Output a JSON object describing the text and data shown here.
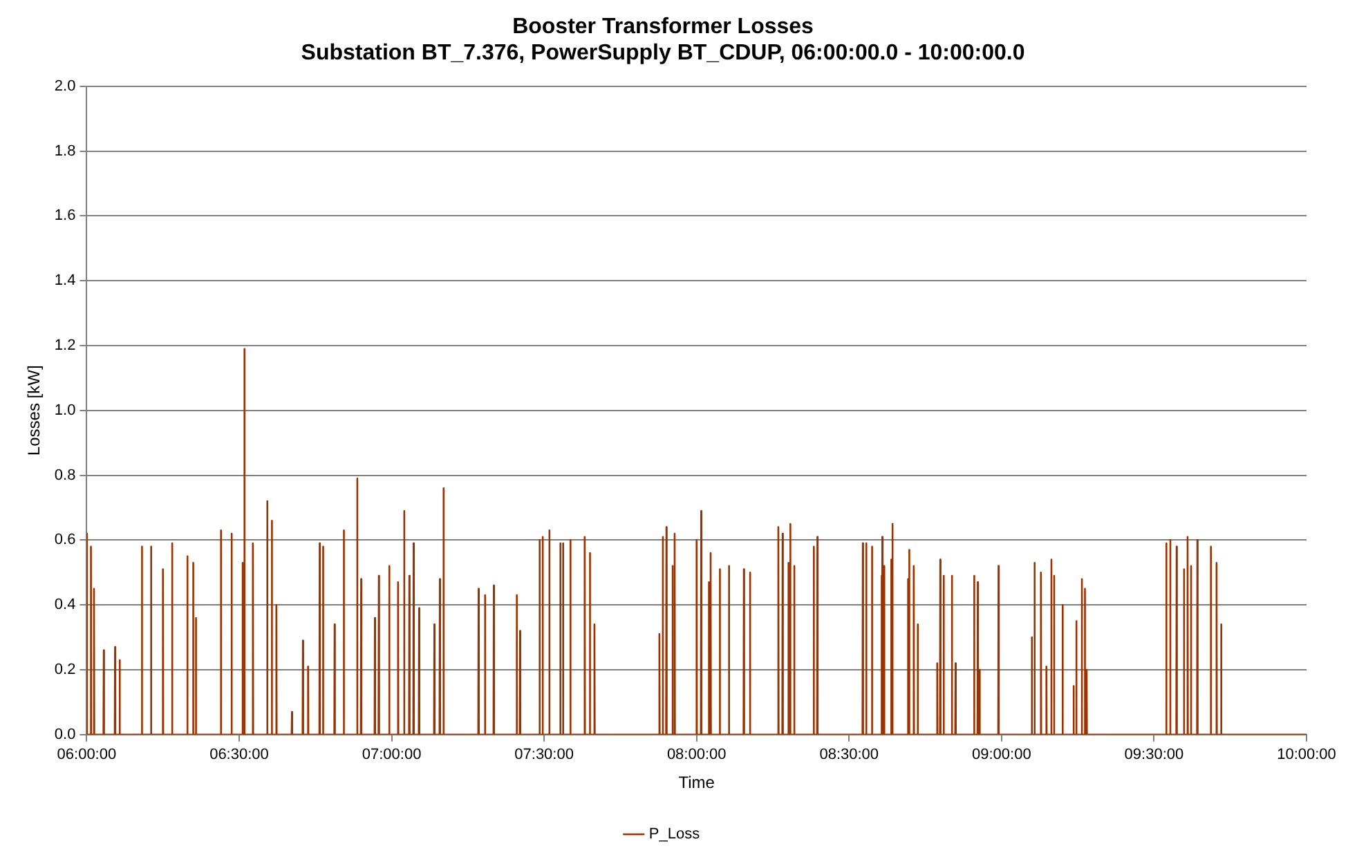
{
  "chart_data": {
    "type": "line",
    "title": "Booster Transformer Losses",
    "subtitle": "Substation BT_7.376, PowerSupply BT_CDUP, 06:00:00.0 - 10:00:00.0",
    "xlabel": "Time",
    "ylabel": "Losses [kW]",
    "xlim": [
      6,
      10
    ],
    "xticks": [
      {
        "value": 6,
        "label": "06:00:00"
      },
      {
        "value": 6.5,
        "label": "06:30:00"
      },
      {
        "value": 7,
        "label": "07:00:00"
      },
      {
        "value": 7.5,
        "label": "07:30:00"
      },
      {
        "value": 8,
        "label": "08:00:00"
      },
      {
        "value": 8.5,
        "label": "08:30:00"
      },
      {
        "value": 9,
        "label": "09:00:00"
      },
      {
        "value": 9.5,
        "label": "09:30:00"
      },
      {
        "value": 10,
        "label": "10:00:00"
      }
    ],
    "ylim": [
      0,
      2
    ],
    "yticks": [
      {
        "value": 0,
        "label": "0.0"
      },
      0.2,
      0.4,
      0.6,
      0.8,
      {
        "value": 1,
        "label": "1.0"
      },
      1.2,
      1.4,
      1.6,
      1.8,
      {
        "value": 2,
        "label": "2.0"
      }
    ],
    "grid": "y",
    "legend": "bottom",
    "marker": "none",
    "line_style": "solid",
    "series": [
      {
        "name": "P_Loss",
        "color": "#993300",
        "x": [
          6.0,
          6.001,
          6.013,
          6.014,
          6.015,
          6.023,
          6.024,
          6.025,
          6.055,
          6.056,
          6.057,
          6.092,
          6.093,
          6.094,
          6.107,
          6.108,
          6.109,
          6.18,
          6.181,
          6.182,
          6.21,
          6.211,
          6.212,
          6.249,
          6.25,
          6.251,
          6.279,
          6.28,
          6.281,
          6.329,
          6.33,
          6.331,
          6.348,
          6.349,
          6.35,
          6.357,
          6.358,
          6.359,
          6.439,
          6.44,
          6.441,
          6.474,
          6.475,
          6.476,
          6.51,
          6.511,
          6.512,
          6.516,
          6.517,
          6.518,
          6.544,
          6.545,
          6.546,
          6.591,
          6.592,
          6.593,
          6.606,
          6.607,
          6.608,
          6.621,
          6.622,
          6.623,
          6.672,
          6.673,
          6.674,
          6.708,
          6.709,
          6.71,
          6.725,
          6.726,
          6.727,
          6.763,
          6.764,
          6.765,
          6.774,
          6.775,
          6.776,
          6.812,
          6.813,
          6.814,
          6.842,
          6.843,
          6.844,
          6.886,
          6.887,
          6.888,
          6.899,
          6.9,
          6.901,
          6.944,
          6.945,
          6.946,
          6.957,
          6.958,
          6.959,
          6.991,
          6.992,
          6.993,
          7.02,
          7.021,
          7.022,
          7.04,
          7.041,
          7.042,
          7.057,
          7.058,
          7.059,
          7.071,
          7.072,
          7.073,
          7.089,
          7.09,
          7.091,
          7.139,
          7.14,
          7.141,
          7.157,
          7.158,
          7.159,
          7.169,
          7.17,
          7.171,
          7.284,
          7.285,
          7.286,
          7.305,
          7.306,
          7.307,
          7.334,
          7.335,
          7.336,
          7.409,
          7.41,
          7.411,
          7.42,
          7.421,
          7.422,
          7.484,
          7.485,
          7.486,
          7.494,
          7.495,
          7.496,
          7.516,
          7.517,
          7.518,
          7.552,
          7.553,
          7.554,
          7.561,
          7.562,
          7.563,
          7.585,
          7.586,
          7.587,
          7.632,
          7.633,
          7.634,
          7.649,
          7.65,
          7.651,
          7.664,
          7.665,
          7.666,
          7.877,
          7.878,
          7.879,
          7.888,
          7.889,
          7.89,
          7.9,
          7.901,
          7.902,
          7.92,
          7.921,
          7.922,
          7.927,
          7.928,
          7.929,
          7.999,
          8.0,
          8.001,
          8.014,
          8.015,
          8.016,
          8.039,
          8.04,
          8.041,
          8.045,
          8.046,
          8.047,
          8.075,
          8.076,
          8.077,
          8.105,
          8.106,
          8.107,
          8.154,
          8.155,
          8.156,
          8.174,
          8.175,
          8.176,
          8.267,
          8.268,
          8.269,
          8.281,
          8.282,
          8.283,
          8.3,
          8.301,
          8.302,
          8.306,
          8.307,
          8.308,
          8.319,
          8.32,
          8.321,
          8.383,
          8.384,
          8.385,
          8.395,
          8.396,
          8.397,
          8.544,
          8.545,
          8.546,
          8.555,
          8.556,
          8.557,
          8.574,
          8.575,
          8.576,
          8.605,
          8.606,
          8.607,
          8.608,
          8.609,
          8.61,
          8.614,
          8.615,
          8.616,
          8.637,
          8.638,
          8.639,
          8.641,
          8.642,
          8.643,
          8.692,
          8.693,
          8.694,
          8.696,
          8.697,
          8.698,
          8.711,
          8.712,
          8.713,
          8.724,
          8.725,
          8.726,
          8.788,
          8.789,
          8.79,
          8.798,
          8.799,
          8.8,
          8.809,
          8.81,
          8.811,
          8.836,
          8.837,
          8.838,
          8.848,
          8.849,
          8.85,
          8.909,
          8.91,
          8.911,
          8.921,
          8.922,
          8.923,
          8.927,
          8.928,
          8.929,
          8.989,
          8.99,
          8.991,
          9.098,
          9.099,
          9.1,
          9.107,
          9.108,
          9.109,
          9.128,
          9.129,
          9.13,
          9.146,
          9.147,
          9.148,
          9.162,
          9.163,
          9.164,
          9.171,
          9.172,
          9.173,
          9.199,
          9.2,
          9.201,
          9.235,
          9.236,
          9.237,
          9.244,
          9.245,
          9.246,
          9.262,
          9.263,
          9.264,
          9.272,
          9.273,
          9.274,
          9.278,
          9.279,
          9.28,
          9.539,
          9.54,
          9.541,
          9.552,
          9.553,
          9.554,
          9.573,
          9.574,
          9.575,
          9.597,
          9.598,
          9.599,
          9.609,
          9.61,
          9.611,
          9.62,
          9.621,
          9.622,
          9.641,
          9.642,
          9.643,
          9.685,
          9.686,
          9.687,
          9.704,
          9.705,
          9.706,
          9.719,
          9.72,
          9.721,
          10.0
        ],
        "values": [
          0.62,
          0,
          0,
          0.58,
          0,
          0,
          0.45,
          0,
          0,
          0.26,
          0,
          0,
          0.27,
          0,
          0,
          0.23,
          0,
          0,
          0.58,
          0,
          0,
          0.58,
          0,
          0,
          0.51,
          0,
          0,
          0.59,
          0,
          0,
          0.55,
          0,
          0,
          0.53,
          0,
          0,
          0.36,
          0,
          0,
          0.63,
          0,
          0,
          0.62,
          0,
          0,
          0.53,
          0,
          0,
          1.19,
          0,
          0,
          0.59,
          0,
          0,
          0.72,
          0,
          0,
          0.66,
          0,
          0,
          0.4,
          0,
          0,
          0.07,
          0,
          0,
          0.29,
          0,
          0,
          0.21,
          0,
          0,
          0.59,
          0,
          0,
          0.58,
          0,
          0,
          0.34,
          0,
          0,
          0.63,
          0,
          0,
          0.79,
          0,
          0,
          0.48,
          0,
          0,
          0.36,
          0,
          0,
          0.49,
          0,
          0,
          0.52,
          0,
          0,
          0.47,
          0,
          0,
          0.69,
          0,
          0,
          0.49,
          0,
          0,
          0.59,
          0,
          0,
          0.39,
          0,
          0,
          0.34,
          0,
          0,
          0.48,
          0,
          0,
          0.76,
          0,
          0,
          0.45,
          0,
          0,
          0.43,
          0,
          0,
          0.46,
          0,
          0,
          0.43,
          0,
          0,
          0.32,
          0,
          0,
          0.6,
          0,
          0,
          0.61,
          0,
          0,
          0.63,
          0,
          0,
          0.59,
          0,
          0,
          0.59,
          0,
          0,
          0.6,
          0,
          0,
          0.61,
          0,
          0,
          0.56,
          0,
          0,
          0.34,
          0,
          0,
          0.31,
          0,
          0,
          0.61,
          0,
          0,
          0.64,
          0,
          0,
          0.52,
          0,
          0,
          0.62,
          0,
          0,
          0.6,
          0,
          0,
          0.69,
          0,
          0,
          0.47,
          0,
          0,
          0.56,
          0,
          0,
          0.51,
          0,
          0,
          0.52,
          0,
          0,
          0.51,
          0,
          0,
          0.5,
          0,
          0,
          0.64,
          0,
          0,
          0.62,
          0,
          0,
          0.53,
          0,
          0,
          0.65,
          0,
          0,
          0.52,
          0,
          0,
          0.58,
          0,
          0,
          0.61,
          0,
          0,
          0.59,
          0,
          0,
          0.59,
          0,
          0,
          0.58,
          0,
          0,
          0.49,
          0,
          0,
          0.61,
          0,
          0,
          0.52,
          0,
          0,
          0.54,
          0,
          0,
          0.65,
          0,
          0,
          0.48,
          0,
          0,
          0.57,
          0,
          0,
          0.52,
          0,
          0,
          0.34,
          0,
          0,
          0.22,
          0,
          0,
          0.54,
          0,
          0,
          0.49,
          0,
          0,
          0.49,
          0,
          0,
          0.22,
          0,
          0,
          0.49,
          0,
          0,
          0.47,
          0,
          0,
          0.2,
          0,
          0,
          0.52,
          0,
          0,
          0.3,
          0,
          0,
          0.53,
          0,
          0,
          0.5,
          0,
          0,
          0.21,
          0,
          0,
          0.54,
          0,
          0,
          0.49,
          0,
          0,
          0.4,
          0,
          0,
          0.15,
          0,
          0,
          0.35,
          0,
          0,
          0.48,
          0,
          0,
          0.45,
          0,
          0,
          0.2,
          0,
          0,
          0.59,
          0,
          0,
          0.6,
          0,
          0,
          0.58,
          0,
          0,
          0.51,
          0,
          0,
          0.61,
          0,
          0,
          0.52,
          0,
          0,
          0.6,
          0,
          0,
          0.58,
          0,
          0,
          0.53,
          0,
          0,
          0.34,
          0,
          0
        ]
      }
    ]
  }
}
